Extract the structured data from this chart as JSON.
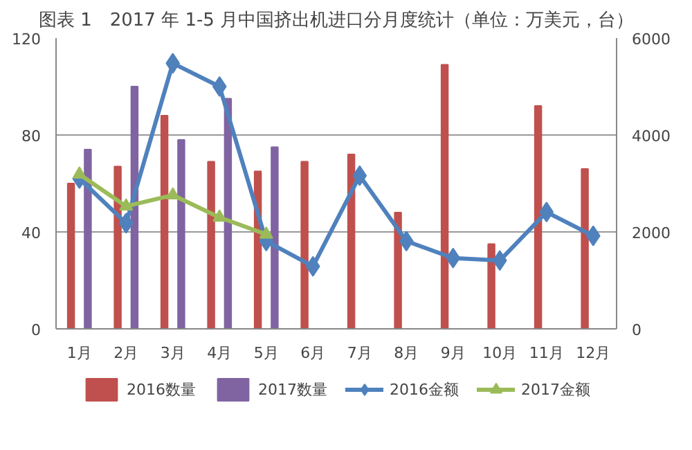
{
  "chart_data": {
    "type": "bar",
    "title": "图表 1　2017 年 1-5 月中国挤出机进口分月度统计（单位：万美元，台）",
    "categories": [
      "1月",
      "2月",
      "3月",
      "4月",
      "5月",
      "6月",
      "7月",
      "8月",
      "9月",
      "10月",
      "11月",
      "12月"
    ],
    "series": [
      {
        "name": "2016数量",
        "color": "#c0504d",
        "values": [
          60,
          67,
          88,
          69,
          65,
          69,
          72,
          48,
          109,
          35,
          92,
          66
        ]
      },
      {
        "name": "2017数量",
        "color": "#8064a2",
        "values": [
          74,
          100,
          78,
          95,
          75,
          null,
          null,
          null,
          null,
          null,
          null,
          null
        ]
      },
      {
        "name": "2016金额",
        "type": "line",
        "axis": "y2",
        "marker": "diamond",
        "color": "#4f81bd",
        "values": [
          3100,
          2180,
          5480,
          5000,
          1810,
          1290,
          3160,
          1810,
          1460,
          1410,
          2410,
          1920
        ]
      },
      {
        "name": "2017金额",
        "type": "line",
        "axis": "y2",
        "marker": "triangle",
        "color": "#9bbb59",
        "values": [
          3190,
          2530,
          2760,
          2300,
          1950,
          null,
          null,
          null,
          null,
          null,
          null,
          null
        ]
      }
    ],
    "ylim": [
      0,
      120
    ],
    "yticks": [
      0,
      40,
      80,
      120
    ],
    "y2lim": [
      0,
      6000
    ],
    "y2ticks": [
      0,
      2000,
      4000,
      6000
    ],
    "grid": "y",
    "legend": "bottom"
  }
}
